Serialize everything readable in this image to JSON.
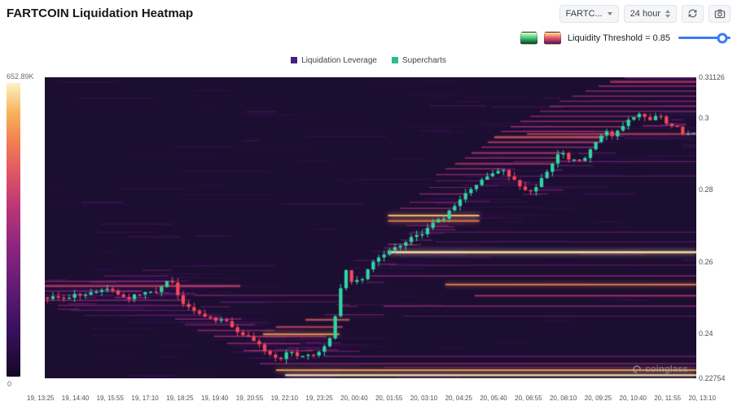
{
  "header": {
    "title": "FARTCOIN Liquidation Heatmap",
    "symbol_select": "FARTC...",
    "interval_select": "24 hour"
  },
  "toolbar": {
    "threshold_label": "Liquidity Threshold = 0.85",
    "slider_value": 0.85,
    "accent_color": "#3b7cf0",
    "swatches": [
      {
        "name": "green-colormap",
        "gradient": [
          "#eafbd2",
          "#45cf79",
          "#0b3a24"
        ]
      },
      {
        "name": "magma-colormap",
        "gradient": [
          "#fce98f",
          "#ef5a6a",
          "#47125c"
        ]
      }
    ]
  },
  "legend": {
    "items": [
      {
        "label": "Liquidation Leverage",
        "color": "#44227a"
      },
      {
        "label": "Supercharts",
        "color": "#2ebd85"
      }
    ]
  },
  "colorbar": {
    "max_label": "652.89K",
    "min_label": "0"
  },
  "watermark": "coinglass",
  "chart_data": {
    "type": "heatmap",
    "title": "FARTCOIN Liquidation Heatmap",
    "background": "#1c0e31",
    "y_axis": {
      "min": 0.22754,
      "max": 0.31126,
      "ticks": [
        0.31126,
        0.3,
        0.28,
        0.26,
        0.24,
        0.22754
      ],
      "tick_labels": [
        "0.31126",
        "0.3",
        "0.28",
        "0.26",
        "0.24",
        "0.22754"
      ]
    },
    "x_labels": [
      "19, 13:25",
      "19, 14:40",
      "19, 15:55",
      "19, 17:10",
      "19, 18:25",
      "19, 19:40",
      "19, 20:55",
      "19, 22:10",
      "19, 23:25",
      "20, 00:40",
      "20, 01:55",
      "20, 03:10",
      "20, 04:25",
      "20, 05:40",
      "20, 06:55",
      "20, 08:10",
      "20, 09:25",
      "20, 10:40",
      "20, 11:55",
      "20, 13:10"
    ],
    "colormap_stops": [
      [
        0,
        "#140824"
      ],
      [
        0.15,
        "#36105c"
      ],
      [
        0.3,
        "#611b72"
      ],
      [
        0.45,
        "#8f2680"
      ],
      [
        0.58,
        "#bc3775"
      ],
      [
        0.7,
        "#e25765"
      ],
      [
        0.8,
        "#f07f52"
      ],
      [
        0.9,
        "#f8b35b"
      ],
      [
        1,
        "#fdf2c3"
      ]
    ],
    "candles": {
      "up_color": "#2fd6a3",
      "down_color": "#f5475c",
      "count": 120
    },
    "price_path": [
      [
        0.0,
        0.25
      ],
      [
        0.01,
        0.2508
      ],
      [
        0.02,
        0.2494
      ],
      [
        0.03,
        0.25
      ],
      [
        0.04,
        0.251
      ],
      [
        0.05,
        0.2503
      ],
      [
        0.06,
        0.2513
      ],
      [
        0.07,
        0.252
      ],
      [
        0.08,
        0.2516
      ],
      [
        0.094,
        0.2526
      ],
      [
        0.105,
        0.2514
      ],
      [
        0.115,
        0.25
      ],
      [
        0.125,
        0.2496
      ],
      [
        0.135,
        0.2506
      ],
      [
        0.145,
        0.2513
      ],
      [
        0.155,
        0.2521
      ],
      [
        0.165,
        0.2515
      ],
      [
        0.175,
        0.2524
      ],
      [
        0.182,
        0.2536
      ],
      [
        0.188,
        0.2556
      ],
      [
        0.194,
        0.2538
      ],
      [
        0.2,
        0.2508
      ],
      [
        0.208,
        0.2486
      ],
      [
        0.216,
        0.2476
      ],
      [
        0.224,
        0.2466
      ],
      [
        0.232,
        0.2458
      ],
      [
        0.24,
        0.2448
      ],
      [
        0.248,
        0.2453
      ],
      [
        0.256,
        0.2441
      ],
      [
        0.264,
        0.2433
      ],
      [
        0.272,
        0.2439
      ],
      [
        0.28,
        0.2426
      ],
      [
        0.288,
        0.2411
      ],
      [
        0.296,
        0.2403
      ],
      [
        0.304,
        0.2393
      ],
      [
        0.312,
        0.2386
      ],
      [
        0.32,
        0.2379
      ],
      [
        0.328,
        0.2366
      ],
      [
        0.336,
        0.2351
      ],
      [
        0.344,
        0.2339
      ],
      [
        0.352,
        0.2329
      ],
      [
        0.36,
        0.2326
      ],
      [
        0.368,
        0.2341
      ],
      [
        0.376,
        0.2353
      ],
      [
        0.384,
        0.2339
      ],
      [
        0.392,
        0.2331
      ],
      [
        0.4,
        0.2346
      ],
      [
        0.408,
        0.2336
      ],
      [
        0.416,
        0.2347
      ],
      [
        0.424,
        0.2357
      ],
      [
        0.432,
        0.2372
      ],
      [
        0.44,
        0.2402
      ],
      [
        0.448,
        0.2472
      ],
      [
        0.456,
        0.2542
      ],
      [
        0.462,
        0.2576
      ],
      [
        0.468,
        0.2551
      ],
      [
        0.474,
        0.2536
      ],
      [
        0.48,
        0.2556
      ],
      [
        0.486,
        0.2546
      ],
      [
        0.492,
        0.2561
      ],
      [
        0.498,
        0.2586
      ],
      [
        0.504,
        0.2601
      ],
      [
        0.51,
        0.2618
      ],
      [
        0.516,
        0.2606
      ],
      [
        0.522,
        0.2622
      ],
      [
        0.528,
        0.2631
      ],
      [
        0.534,
        0.2626
      ],
      [
        0.54,
        0.2646
      ],
      [
        0.546,
        0.2639
      ],
      [
        0.552,
        0.2653
      ],
      [
        0.558,
        0.2661
      ],
      [
        0.564,
        0.2669
      ],
      [
        0.57,
        0.2677
      ],
      [
        0.576,
        0.2671
      ],
      [
        0.582,
        0.2685
      ],
      [
        0.588,
        0.2693
      ],
      [
        0.594,
        0.2701
      ],
      [
        0.6,
        0.2713
      ],
      [
        0.606,
        0.2723
      ],
      [
        0.612,
        0.2719
      ],
      [
        0.618,
        0.2731
      ],
      [
        0.624,
        0.2743
      ],
      [
        0.63,
        0.2753
      ],
      [
        0.636,
        0.2763
      ],
      [
        0.642,
        0.2776
      ],
      [
        0.648,
        0.2791
      ],
      [
        0.66,
        0.2811
      ],
      [
        0.672,
        0.2829
      ],
      [
        0.684,
        0.2841
      ],
      [
        0.696,
        0.2851
      ],
      [
        0.706,
        0.2857
      ],
      [
        0.714,
        0.2841
      ],
      [
        0.722,
        0.2826
      ],
      [
        0.73,
        0.2811
      ],
      [
        0.738,
        0.2801
      ],
      [
        0.746,
        0.2793
      ],
      [
        0.754,
        0.2805
      ],
      [
        0.762,
        0.2821
      ],
      [
        0.77,
        0.2843
      ],
      [
        0.778,
        0.2863
      ],
      [
        0.786,
        0.2889
      ],
      [
        0.794,
        0.2909
      ],
      [
        0.802,
        0.2893
      ],
      [
        0.81,
        0.2876
      ],
      [
        0.818,
        0.2887
      ],
      [
        0.826,
        0.2879
      ],
      [
        0.834,
        0.2896
      ],
      [
        0.842,
        0.2913
      ],
      [
        0.85,
        0.2933
      ],
      [
        0.858,
        0.2949
      ],
      [
        0.866,
        0.2961
      ],
      [
        0.874,
        0.2953
      ],
      [
        0.882,
        0.2966
      ],
      [
        0.89,
        0.2976
      ],
      [
        0.898,
        0.2989
      ],
      [
        0.906,
        0.2999
      ],
      [
        0.914,
        0.3009
      ],
      [
        0.922,
        0.3001
      ],
      [
        0.93,
        0.2991
      ],
      [
        0.938,
        0.2999
      ],
      [
        0.946,
        0.3007
      ],
      [
        0.954,
        0.2991
      ],
      [
        0.962,
        0.2976
      ],
      [
        0.97,
        0.2983
      ],
      [
        0.978,
        0.2963
      ],
      [
        0.986,
        0.2951
      ],
      [
        1.0,
        0.2959
      ]
    ],
    "liquidation_lines_columns": [
      "price",
      "x0_frac",
      "x1_frac",
      "width_px",
      "intensity"
    ],
    "liquidation_lines": [
      [
        0.2284,
        0.369,
        1,
        2,
        0.98
      ],
      [
        0.2298,
        0.355,
        1,
        2,
        0.86
      ],
      [
        0.2316,
        0.33,
        1,
        1.5,
        0.5
      ],
      [
        0.2336,
        0.43,
        1,
        1.5,
        0.42
      ],
      [
        0.2306,
        0.52,
        1,
        1,
        0.35
      ],
      [
        0.256,
        0.09,
        0.189,
        1,
        0.42
      ],
      [
        0.2545,
        0,
        0.2,
        1.5,
        0.5
      ],
      [
        0.2532,
        0,
        0.3,
        2,
        0.63
      ],
      [
        0.2518,
        0,
        0.15,
        1.5,
        0.46
      ],
      [
        0.2506,
        0,
        0.105,
        1,
        0.4
      ],
      [
        0.2492,
        0,
        0.212,
        1.5,
        0.48
      ],
      [
        0.2478,
        0.02,
        0.226,
        1.5,
        0.44
      ],
      [
        0.2464,
        0.04,
        0.246,
        1,
        0.4
      ],
      [
        0.245,
        0.06,
        0.272,
        1,
        0.36
      ],
      [
        0.2576,
        0.15,
        0.196,
        1,
        0.38
      ],
      [
        0.244,
        0.2,
        0.302,
        1.5,
        0.5
      ],
      [
        0.2424,
        0.215,
        0.322,
        1.5,
        0.46
      ],
      [
        0.2408,
        0.235,
        0.352,
        1.5,
        0.52
      ],
      [
        0.2392,
        0.26,
        0.432,
        1.5,
        0.58
      ],
      [
        0.2398,
        0.335,
        0.452,
        2,
        0.85
      ],
      [
        0.2372,
        0.28,
        0.392,
        1.5,
        0.52
      ],
      [
        0.2352,
        0.305,
        0.412,
        1.5,
        0.55
      ],
      [
        0.2418,
        0.355,
        0.457,
        1.5,
        0.68
      ],
      [
        0.2438,
        0.4,
        0.468,
        1.5,
        0.75
      ],
      [
        0.2452,
        0.43,
        0.52,
        1,
        0.5
      ],
      [
        0.2506,
        0.23,
        0.457,
        1.5,
        0.42
      ],
      [
        0.2488,
        0.27,
        0.45,
        1,
        0.38
      ],
      [
        0.2626,
        0.527,
        1,
        2.5,
        0.97
      ],
      [
        0.2648,
        0.527,
        0.565,
        1.5,
        0.55
      ],
      [
        0.2728,
        0.527,
        0.667,
        2,
        0.92
      ],
      [
        0.2713,
        0.527,
        0.667,
        2,
        0.8
      ],
      [
        0.27,
        0.555,
        0.62,
        1,
        0.48
      ],
      [
        0.2536,
        0.615,
        1,
        2,
        0.8
      ],
      [
        0.2505,
        0.66,
        1,
        1.5,
        0.6
      ],
      [
        0.2476,
        0.52,
        1,
        1.5,
        0.52
      ],
      [
        0.256,
        0.5,
        1,
        1.5,
        0.5
      ],
      [
        0.259,
        0.53,
        1,
        1,
        0.42
      ],
      [
        0.2682,
        0.56,
        1,
        1,
        0.42
      ],
      [
        0.2655,
        0.6,
        1,
        1,
        0.38
      ],
      [
        0.2448,
        0.55,
        1,
        1,
        0.36
      ],
      [
        0.2748,
        0.545,
        0.627,
        1.5,
        0.5
      ],
      [
        0.2765,
        0.56,
        0.64,
        1.5,
        0.45
      ],
      [
        0.2788,
        0.575,
        0.65,
        1.5,
        0.52
      ],
      [
        0.2806,
        0.59,
        0.655,
        1,
        0.45
      ],
      [
        0.2825,
        0.6,
        0.67,
        1,
        0.42
      ],
      [
        0.2842,
        0.6,
        0.686,
        1.5,
        0.5
      ],
      [
        0.2858,
        0.615,
        0.707,
        1.5,
        0.55
      ],
      [
        0.2872,
        0.63,
        0.783,
        1.5,
        0.6
      ],
      [
        0.2888,
        0.645,
        0.788,
        1.5,
        0.55
      ],
      [
        0.2902,
        0.655,
        0.794,
        1.5,
        0.6
      ],
      [
        0.2918,
        0.67,
        0.845,
        1.5,
        0.55
      ],
      [
        0.2932,
        0.68,
        0.852,
        1.5,
        0.62
      ],
      [
        0.2946,
        0.69,
        0.859,
        2,
        0.72
      ],
      [
        0.2962,
        0.7,
        0.867,
        1.5,
        0.55
      ],
      [
        0.2975,
        0.715,
        0.89,
        1.5,
        0.58
      ],
      [
        0.299,
        0.73,
        0.9,
        1.5,
        0.55
      ],
      [
        0.3004,
        0.745,
        0.913,
        1.5,
        0.52
      ],
      [
        0.3018,
        0.76,
        1,
        1.5,
        0.5
      ],
      [
        0.3032,
        0.775,
        1,
        1.5,
        0.55
      ],
      [
        0.3046,
        0.79,
        1,
        1.5,
        0.48
      ],
      [
        0.306,
        0.81,
        1,
        1.5,
        0.52
      ],
      [
        0.3074,
        0.83,
        1,
        1.5,
        0.5
      ],
      [
        0.3088,
        0.85,
        1,
        1.5,
        0.55
      ],
      [
        0.31,
        0.868,
        1,
        2,
        0.6
      ],
      [
        0.3111,
        0.89,
        1,
        1.5,
        0.45
      ],
      [
        0.2955,
        0.74,
        1,
        1.5,
        0.66
      ],
      [
        0.2878,
        0.72,
        1,
        1,
        0.45
      ],
      [
        0.2838,
        0.7,
        1,
        1,
        0.4
      ]
    ]
  }
}
